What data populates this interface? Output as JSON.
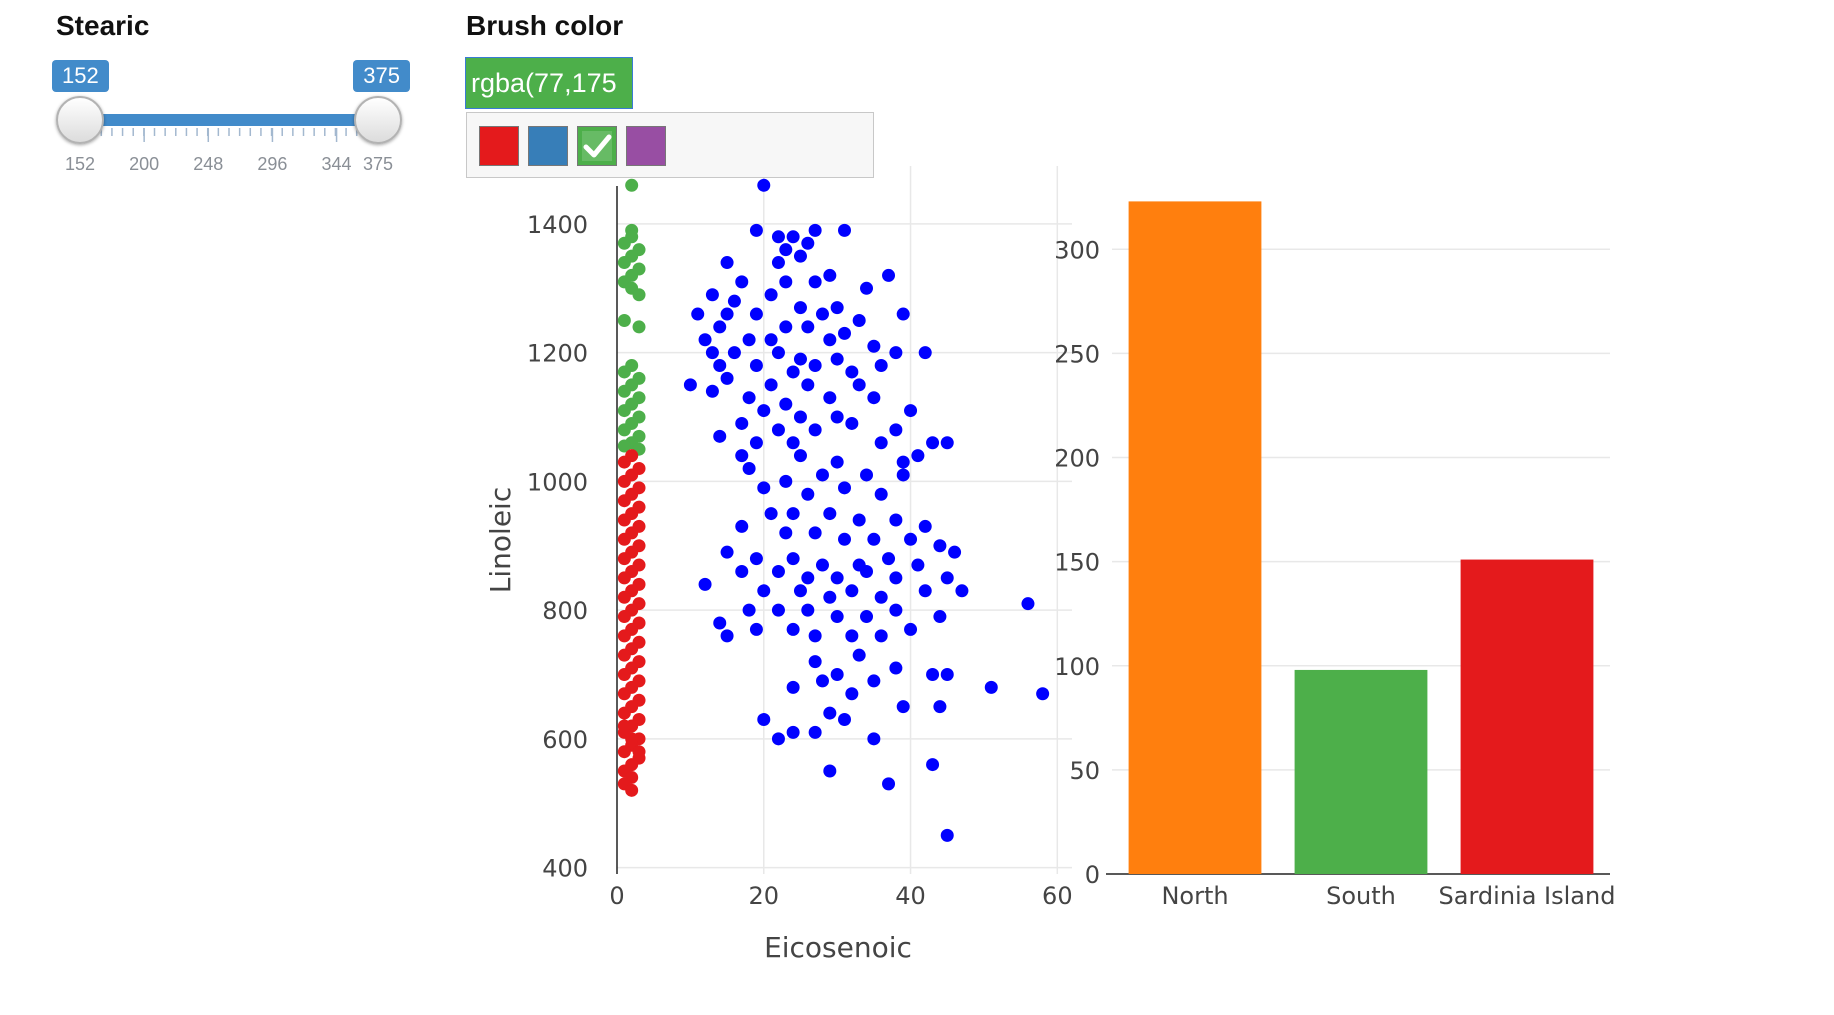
{
  "slider": {
    "label": "Stearic",
    "from": 152,
    "to": 375,
    "min": 152,
    "max": 375,
    "tick_labels": [
      "152",
      "200",
      "248",
      "296",
      "344",
      "375"
    ],
    "accent": "#428bca"
  },
  "brush": {
    "label": "Brush color",
    "value": "rgba(77,175",
    "value_color": "#4daf4a",
    "palette": [
      {
        "name": "red",
        "color": "#e41a1c",
        "selected": false
      },
      {
        "name": "blue",
        "color": "#377eb8",
        "selected": false
      },
      {
        "name": "green",
        "color": "#4daf4a",
        "selected": true
      },
      {
        "name": "purple",
        "color": "#984ea3",
        "selected": false
      }
    ]
  },
  "chart_data": [
    {
      "type": "scatter",
      "title": "",
      "xlabel": "Eicosenoic",
      "ylabel": "Linoleic",
      "xlim": [
        0,
        62
      ],
      "ylim": [
        390,
        1490
      ],
      "x_ticks": [
        0,
        20,
        40,
        60
      ],
      "y_ticks": [
        400,
        600,
        800,
        1000,
        1200,
        1400
      ],
      "grid": true,
      "series": [
        {
          "color": "#0000ff",
          "points": [
            [
              20,
              1460
            ],
            [
              19,
              1390
            ],
            [
              22,
              1380
            ],
            [
              24,
              1380
            ],
            [
              27,
              1390
            ],
            [
              31,
              1390
            ],
            [
              23,
              1360
            ],
            [
              25,
              1350
            ],
            [
              26,
              1370
            ],
            [
              15,
              1340
            ],
            [
              22,
              1340
            ],
            [
              29,
              1320
            ],
            [
              37,
              1320
            ],
            [
              17,
              1310
            ],
            [
              23,
              1310
            ],
            [
              27,
              1310
            ],
            [
              34,
              1300
            ],
            [
              13,
              1290
            ],
            [
              21,
              1290
            ],
            [
              16,
              1280
            ],
            [
              25,
              1270
            ],
            [
              30,
              1270
            ],
            [
              11,
              1260
            ],
            [
              15,
              1260
            ],
            [
              19,
              1260
            ],
            [
              28,
              1260
            ],
            [
              33,
              1250
            ],
            [
              39,
              1260
            ],
            [
              14,
              1240
            ],
            [
              23,
              1240
            ],
            [
              26,
              1240
            ],
            [
              31,
              1230
            ],
            [
              12,
              1220
            ],
            [
              18,
              1220
            ],
            [
              21,
              1220
            ],
            [
              29,
              1220
            ],
            [
              35,
              1210
            ],
            [
              13,
              1200
            ],
            [
              16,
              1200
            ],
            [
              22,
              1200
            ],
            [
              25,
              1190
            ],
            [
              30,
              1190
            ],
            [
              38,
              1200
            ],
            [
              42,
              1200
            ],
            [
              14,
              1180
            ],
            [
              19,
              1180
            ],
            [
              24,
              1170
            ],
            [
              27,
              1180
            ],
            [
              32,
              1170
            ],
            [
              36,
              1180
            ],
            [
              10,
              1150
            ],
            [
              15,
              1160
            ],
            [
              21,
              1150
            ],
            [
              26,
              1150
            ],
            [
              33,
              1150
            ],
            [
              13,
              1140
            ],
            [
              18,
              1130
            ],
            [
              23,
              1120
            ],
            [
              29,
              1130
            ],
            [
              35,
              1130
            ],
            [
              20,
              1110
            ],
            [
              25,
              1100
            ],
            [
              30,
              1100
            ],
            [
              40,
              1110
            ],
            [
              17,
              1090
            ],
            [
              22,
              1080
            ],
            [
              27,
              1080
            ],
            [
              32,
              1090
            ],
            [
              38,
              1080
            ],
            [
              14,
              1070
            ],
            [
              19,
              1060
            ],
            [
              24,
              1060
            ],
            [
              36,
              1060
            ],
            [
              43,
              1060
            ],
            [
              45,
              1060
            ],
            [
              17,
              1040
            ],
            [
              25,
              1040
            ],
            [
              30,
              1030
            ],
            [
              39,
              1030
            ],
            [
              41,
              1040
            ],
            [
              18,
              1020
            ],
            [
              23,
              1000
            ],
            [
              28,
              1010
            ],
            [
              34,
              1010
            ],
            [
              39,
              1010
            ],
            [
              20,
              990
            ],
            [
              26,
              980
            ],
            [
              31,
              990
            ],
            [
              36,
              980
            ],
            [
              21,
              950
            ],
            [
              24,
              950
            ],
            [
              29,
              950
            ],
            [
              33,
              940
            ],
            [
              38,
              940
            ],
            [
              42,
              930
            ],
            [
              17,
              930
            ],
            [
              23,
              920
            ],
            [
              27,
              920
            ],
            [
              31,
              910
            ],
            [
              35,
              910
            ],
            [
              40,
              910
            ],
            [
              44,
              900
            ],
            [
              15,
              890
            ],
            [
              19,
              880
            ],
            [
              24,
              880
            ],
            [
              28,
              870
            ],
            [
              33,
              870
            ],
            [
              37,
              880
            ],
            [
              41,
              870
            ],
            [
              46,
              890
            ],
            [
              17,
              860
            ],
            [
              22,
              860
            ],
            [
              26,
              850
            ],
            [
              30,
              850
            ],
            [
              34,
              860
            ],
            [
              38,
              850
            ],
            [
              45,
              850
            ],
            [
              12,
              840
            ],
            [
              20,
              830
            ],
            [
              25,
              830
            ],
            [
              29,
              820
            ],
            [
              32,
              830
            ],
            [
              36,
              820
            ],
            [
              42,
              830
            ],
            [
              47,
              830
            ],
            [
              56,
              810
            ],
            [
              18,
              800
            ],
            [
              22,
              800
            ],
            [
              26,
              800
            ],
            [
              30,
              790
            ],
            [
              34,
              790
            ],
            [
              38,
              800
            ],
            [
              44,
              790
            ],
            [
              14,
              780
            ],
            [
              19,
              770
            ],
            [
              24,
              770
            ],
            [
              27,
              760
            ],
            [
              32,
              760
            ],
            [
              36,
              760
            ],
            [
              40,
              770
            ],
            [
              15,
              760
            ],
            [
              27,
              720
            ],
            [
              33,
              730
            ],
            [
              30,
              700
            ],
            [
              38,
              710
            ],
            [
              43,
              700
            ],
            [
              24,
              680
            ],
            [
              28,
              690
            ],
            [
              35,
              690
            ],
            [
              45,
              700
            ],
            [
              51,
              680
            ],
            [
              58,
              670
            ],
            [
              32,
              670
            ],
            [
              39,
              650
            ],
            [
              44,
              650
            ],
            [
              29,
              640
            ],
            [
              31,
              630
            ],
            [
              20,
              630
            ],
            [
              24,
              610
            ],
            [
              27,
              610
            ],
            [
              22,
              600
            ],
            [
              35,
              600
            ],
            [
              29,
              550
            ],
            [
              37,
              530
            ],
            [
              43,
              560
            ],
            [
              45,
              450
            ]
          ]
        },
        {
          "color": "#4daf4a",
          "points": [
            [
              2,
              1460
            ],
            [
              2,
              1390
            ],
            [
              2,
              1380
            ],
            [
              1,
              1370
            ],
            [
              3,
              1360
            ],
            [
              2,
              1350
            ],
            [
              1,
              1340
            ],
            [
              3,
              1330
            ],
            [
              2,
              1320
            ],
            [
              1,
              1310
            ],
            [
              2,
              1300
            ],
            [
              3,
              1290
            ],
            [
              1,
              1250
            ],
            [
              3,
              1240
            ],
            [
              2,
              1180
            ],
            [
              1,
              1170
            ],
            [
              3,
              1160
            ],
            [
              2,
              1150
            ],
            [
              1,
              1140
            ],
            [
              3,
              1130
            ],
            [
              2,
              1120
            ],
            [
              1,
              1110
            ],
            [
              3,
              1100
            ],
            [
              2,
              1090
            ],
            [
              1,
              1080
            ],
            [
              3,
              1070
            ],
            [
              2,
              1060
            ],
            [
              1,
              1055
            ],
            [
              3,
              1050
            ]
          ]
        },
        {
          "color": "#e41a1c",
          "points": [
            [
              2,
              1040
            ],
            [
              1,
              1030
            ],
            [
              3,
              1020
            ],
            [
              2,
              1010
            ],
            [
              1,
              1000
            ],
            [
              3,
              990
            ],
            [
              2,
              980
            ],
            [
              1,
              970
            ],
            [
              3,
              960
            ],
            [
              2,
              950
            ],
            [
              1,
              940
            ],
            [
              3,
              930
            ],
            [
              2,
              920
            ],
            [
              1,
              910
            ],
            [
              3,
              900
            ],
            [
              2,
              890
            ],
            [
              1,
              880
            ],
            [
              3,
              870
            ],
            [
              2,
              860
            ],
            [
              1,
              850
            ],
            [
              3,
              840
            ],
            [
              2,
              830
            ],
            [
              1,
              820
            ],
            [
              3,
              810
            ],
            [
              2,
              800
            ],
            [
              1,
              790
            ],
            [
              3,
              780
            ],
            [
              2,
              770
            ],
            [
              1,
              760
            ],
            [
              3,
              750
            ],
            [
              2,
              740
            ],
            [
              1,
              730
            ],
            [
              3,
              720
            ],
            [
              2,
              710
            ],
            [
              1,
              700
            ],
            [
              3,
              690
            ],
            [
              2,
              680
            ],
            [
              1,
              670
            ],
            [
              3,
              660
            ],
            [
              2,
              650
            ],
            [
              1,
              640
            ],
            [
              3,
              630
            ],
            [
              2,
              620
            ],
            [
              1,
              610
            ],
            [
              3,
              600
            ],
            [
              2,
              590
            ],
            [
              1,
              580
            ],
            [
              3,
              570
            ],
            [
              2,
              560
            ],
            [
              1,
              550
            ],
            [
              2,
              540
            ],
            [
              1,
              530
            ],
            [
              2,
              520
            ],
            [
              3,
              580
            ],
            [
              2,
              600
            ],
            [
              1,
              620
            ]
          ]
        }
      ]
    },
    {
      "type": "bar",
      "title": "",
      "categories": [
        "North",
        "South",
        "Sardinia Island"
      ],
      "values": [
        323,
        98,
        151
      ],
      "colors": [
        "#ff7f0e",
        "#4daf4a",
        "#e41a1c"
      ],
      "ylim": [
        0,
        340
      ],
      "y_ticks": [
        0,
        50,
        100,
        150,
        200,
        250,
        300
      ],
      "grid": true
    }
  ]
}
